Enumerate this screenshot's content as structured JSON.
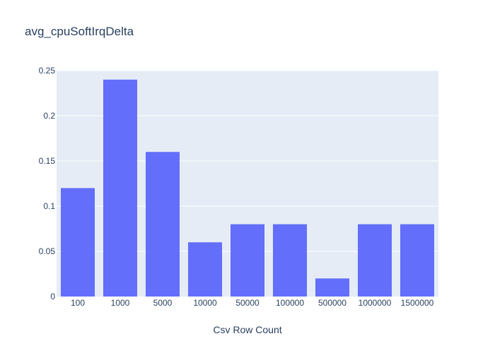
{
  "chart_data": {
    "type": "bar",
    "title": "avg_cpuSoftIrqDelta",
    "xlabel": "Csv Row Count",
    "ylabel": "",
    "categories": [
      "100",
      "1000",
      "5000",
      "10000",
      "50000",
      "100000",
      "500000",
      "1000000",
      "1500000"
    ],
    "values": [
      0.12,
      0.24,
      0.16,
      0.06,
      0.08,
      0.08,
      0.02,
      0.08,
      0.08
    ],
    "ylim": [
      0,
      0.25
    ],
    "yticks": [
      0,
      0.05,
      0.1,
      0.15,
      0.2,
      0.25
    ],
    "ytick_labels": [
      "0",
      "0.05",
      "0.1",
      "0.15",
      "0.2",
      "0.25"
    ],
    "grid": true,
    "legend": "none",
    "colors": {
      "bar": "#636efa",
      "plot_background": "#e5ecf6",
      "grid": "#ffffff",
      "text": "#2a3f5f"
    }
  }
}
